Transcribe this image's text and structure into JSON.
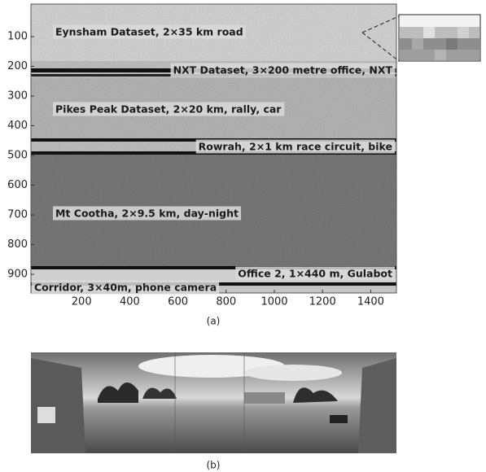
{
  "panel_a": {
    "caption": "(a)",
    "xlim": [
      0,
      1500
    ],
    "ylim": [
      0,
      960
    ],
    "xticks": [
      200,
      400,
      600,
      800,
      1000,
      1200,
      1400
    ],
    "yticks": [
      100,
      200,
      300,
      400,
      500,
      600,
      700,
      800,
      900
    ],
    "datasets": [
      "Eynsham Dataset, 2×35 km road",
      "NXT Dataset, 3×200 metre office, NXT",
      "Pikes Peak Dataset, 2×20 km, rally, car",
      "Rowrah, 2×1 km race circuit, bike",
      "Mt Cootha, 2×9.5 km, day-night",
      "Office 2, 1×440 m, Gulabot",
      "Corridor, 3×40m, phone camera"
    ]
  },
  "panel_b": {
    "caption": "(b)"
  }
}
